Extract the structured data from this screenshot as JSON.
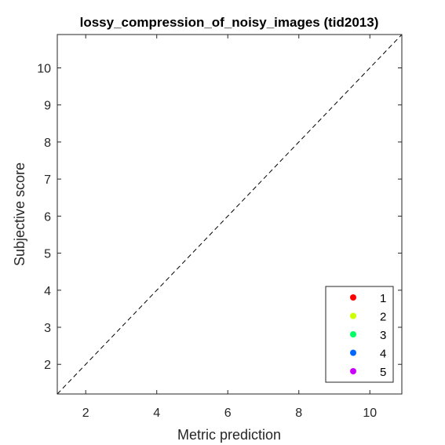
{
  "chart_data": {
    "type": "scatter",
    "title": "lossy_compression_of_noisy_images (tid2013)",
    "xlabel": "Metric prediction",
    "ylabel": "Subjective score",
    "xlim": [
      1.2,
      10.9
    ],
    "ylim": [
      1.2,
      10.9
    ],
    "xticks": [
      2,
      4,
      6,
      8,
      10
    ],
    "yticks": [
      2,
      3,
      4,
      5,
      6,
      7,
      8,
      9,
      10
    ],
    "grid": false,
    "reference_line": {
      "style": "dashed",
      "from": [
        1.2,
        1.2
      ],
      "to": [
        10.9,
        10.9
      ]
    },
    "legend_position": "bottom-right",
    "series": [
      {
        "name": "1",
        "color": "#ff0000",
        "points": []
      },
      {
        "name": "2",
        "color": "#ccff00",
        "points": []
      },
      {
        "name": "3",
        "color": "#00ff66",
        "points": []
      },
      {
        "name": "4",
        "color": "#0066ff",
        "points": []
      },
      {
        "name": "5",
        "color": "#cc00ff",
        "points": []
      }
    ]
  }
}
